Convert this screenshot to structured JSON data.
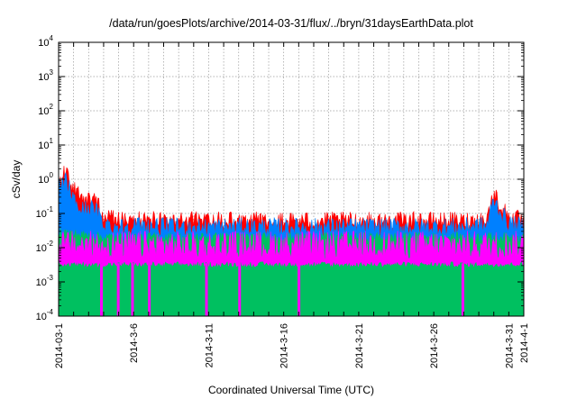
{
  "chart_data": {
    "type": "area",
    "title": "/data/run/goesPlots/archive/2014-03-31/flux/../bryn/31daysEarthData.plot",
    "xlabel": "Coordinated Universal Time (UTC)",
    "ylabel": "cSv/day",
    "yscale": "log",
    "ylim": [
      0.0001,
      10000
    ],
    "y_tick_labels": [
      {
        "value": 0.0001,
        "base": "10",
        "exp": "-4"
      },
      {
        "value": 0.001,
        "base": "10",
        "exp": "-3"
      },
      {
        "value": 0.01,
        "base": "10",
        "exp": "-2"
      },
      {
        "value": 0.1,
        "base": "10",
        "exp": "-1"
      },
      {
        "value": 1,
        "base": "10",
        "exp": "0"
      },
      {
        "value": 10,
        "base": "10",
        "exp": "1"
      },
      {
        "value": 100,
        "base": "10",
        "exp": "2"
      },
      {
        "value": 1000,
        "base": "10",
        "exp": "3"
      },
      {
        "value": 10000,
        "base": "10",
        "exp": "4"
      }
    ],
    "xlim": [
      "2014-03-01",
      "2014-04-01"
    ],
    "x_tick_labels": [
      "2014-03-1",
      "2014-3-6",
      "2014-3-11",
      "2014-3-16",
      "2014-3-21",
      "2014-3-26",
      "2014-3-31",
      "2014-4-1"
    ],
    "x_tick_dates": [
      "2014-03-01",
      "2014-03-06",
      "2014-03-11",
      "2014-03-16",
      "2014-03-21",
      "2014-03-26",
      "2014-03-31",
      "2014-04-01"
    ],
    "x_grid_dates": [
      "2014-03-01",
      "2014-03-02",
      "2014-03-03",
      "2014-03-04",
      "2014-03-05",
      "2014-03-06",
      "2014-03-07",
      "2014-03-08",
      "2014-03-09",
      "2014-03-10",
      "2014-03-11",
      "2014-03-12",
      "2014-03-13",
      "2014-03-14",
      "2014-03-15",
      "2014-03-16",
      "2014-03-17",
      "2014-03-18",
      "2014-03-19",
      "2014-03-20",
      "2014-03-21",
      "2014-03-22",
      "2014-03-23",
      "2014-03-24",
      "2014-03-25",
      "2014-03-26",
      "2014-03-27",
      "2014-03-28",
      "2014-03-29",
      "2014-03-30",
      "2014-03-31",
      "2014-04-01"
    ],
    "grid": true,
    "series": [
      {
        "color": "#ff0000",
        "x": [
          "2014-03-01",
          "2014-03-01 12:00",
          "2014-03-02",
          "2014-03-02 12:00",
          "2014-03-03",
          "2014-03-03 12:00",
          "2014-03-04",
          "2014-03-05",
          "2014-03-06",
          "2014-03-08",
          "2014-03-10",
          "2014-03-13",
          "2014-03-16",
          "2014-03-19",
          "2014-03-22",
          "2014-03-25",
          "2014-03-28",
          "2014-03-29",
          "2014-03-29 12:00",
          "2014-03-30",
          "2014-03-30 12:00",
          "2014-03-31",
          "2014-04-01"
        ],
        "values": [
          0.8,
          1.6,
          0.5,
          0.25,
          0.3,
          0.22,
          0.09,
          0.06,
          0.065,
          0.06,
          0.06,
          0.06,
          0.06,
          0.06,
          0.06,
          0.06,
          0.06,
          0.065,
          0.06,
          0.4,
          0.15,
          0.08,
          0.06
        ]
      },
      {
        "color": "#0080ff",
        "x": [
          "2014-03-01",
          "2014-03-01 12:00",
          "2014-03-02",
          "2014-03-02 12:00",
          "2014-03-03",
          "2014-03-03 12:00",
          "2014-03-04",
          "2014-03-05",
          "2014-03-06",
          "2014-03-08",
          "2014-03-10",
          "2014-03-13",
          "2014-03-16",
          "2014-03-19",
          "2014-03-22",
          "2014-03-25",
          "2014-03-28",
          "2014-03-29",
          "2014-03-29 12:00",
          "2014-03-30",
          "2014-03-30 12:00",
          "2014-03-31",
          "2014-04-01"
        ],
        "values": [
          0.5,
          0.9,
          0.25,
          0.12,
          0.15,
          0.12,
          0.05,
          0.04,
          0.045,
          0.04,
          0.04,
          0.04,
          0.04,
          0.04,
          0.04,
          0.04,
          0.04,
          0.045,
          0.04,
          0.25,
          0.1,
          0.05,
          0.04
        ]
      },
      {
        "color": "#00c060",
        "x": [
          "2014-03-01",
          "2014-03-02",
          "2014-03-03",
          "2014-03-04",
          "2014-03-06",
          "2014-03-10",
          "2014-03-15",
          "2014-03-20",
          "2014-03-25",
          "2014-03-30",
          "2014-04-01"
        ],
        "values": [
          0.03,
          0.025,
          0.022,
          0.02,
          0.02,
          0.02,
          0.02,
          0.02,
          0.02,
          0.02,
          0.02
        ]
      },
      {
        "color": "#ff00ff",
        "x": [
          "2014-03-01",
          "2014-04-01"
        ],
        "values": [
          0.012,
          0.012
        ],
        "baseline": 0.0035,
        "dropouts": [
          "2014-03-04",
          "2014-03-05",
          "2014-03-06",
          "2014-03-07",
          "2014-03-11",
          "2014-03-13",
          "2014-03-17",
          "2014-03-28"
        ]
      }
    ]
  }
}
